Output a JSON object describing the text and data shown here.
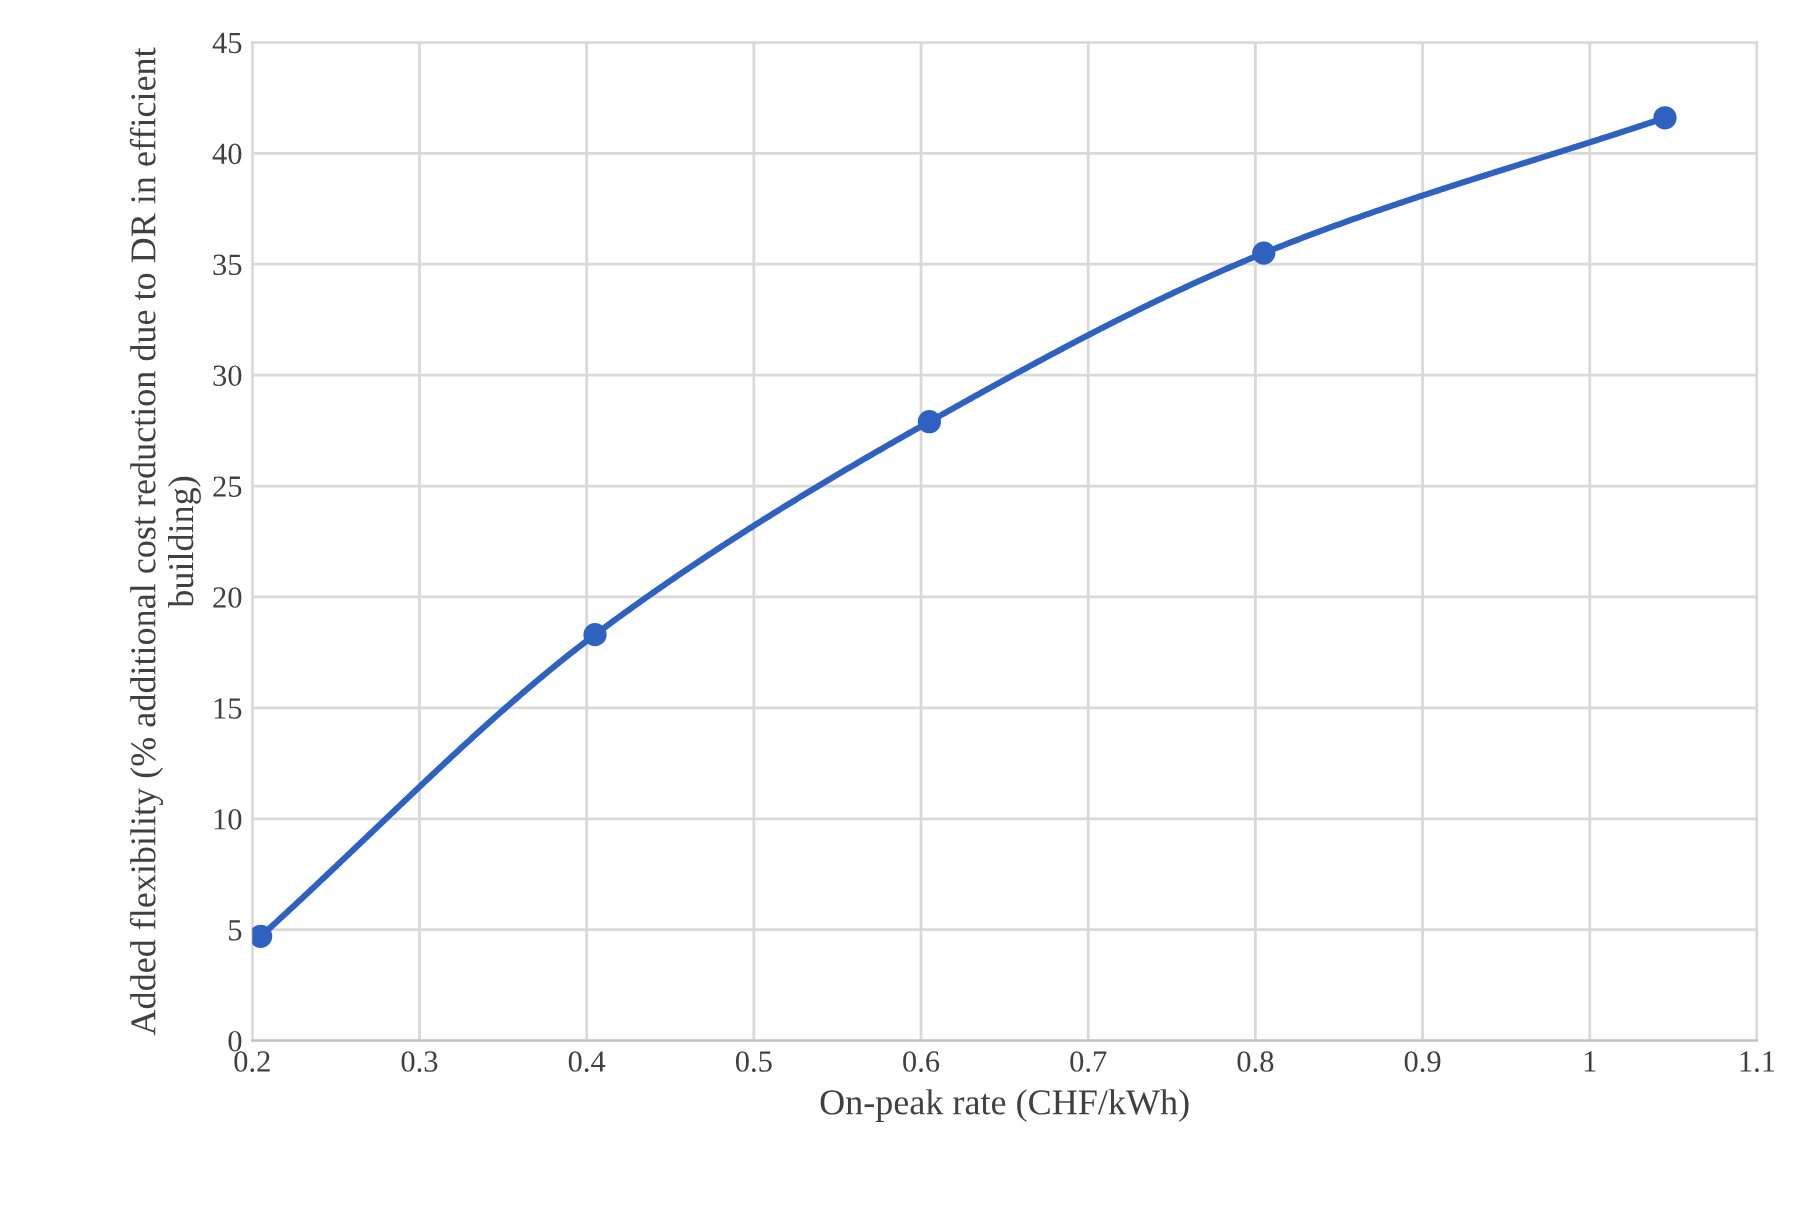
{
  "chart_data": {
    "type": "line",
    "xlabel": "On-peak rate (CHF/kWh)",
    "ylabel": "Added flexibility (% additional cost reduction due to DR in efficient building)",
    "x": [
      0.205,
      0.405,
      0.605,
      0.805,
      1.045
    ],
    "series": [
      {
        "color": "#2f62c0",
        "values": [
          4.7,
          18.3,
          27.9,
          35.5,
          41.6
        ]
      }
    ],
    "xlim": [
      0.2,
      1.1
    ],
    "xticks": [
      0.2,
      0.3,
      0.4,
      0.5,
      0.6,
      0.7,
      0.8,
      0.9,
      {
        "value": 1.0,
        "label": "1"
      },
      1.1
    ],
    "ylim": [
      0,
      45
    ],
    "yticks": [
      0,
      5,
      10,
      15,
      20,
      25,
      30,
      35,
      40,
      45
    ],
    "grid": true,
    "marker": "circle",
    "line_style": "solid"
  }
}
